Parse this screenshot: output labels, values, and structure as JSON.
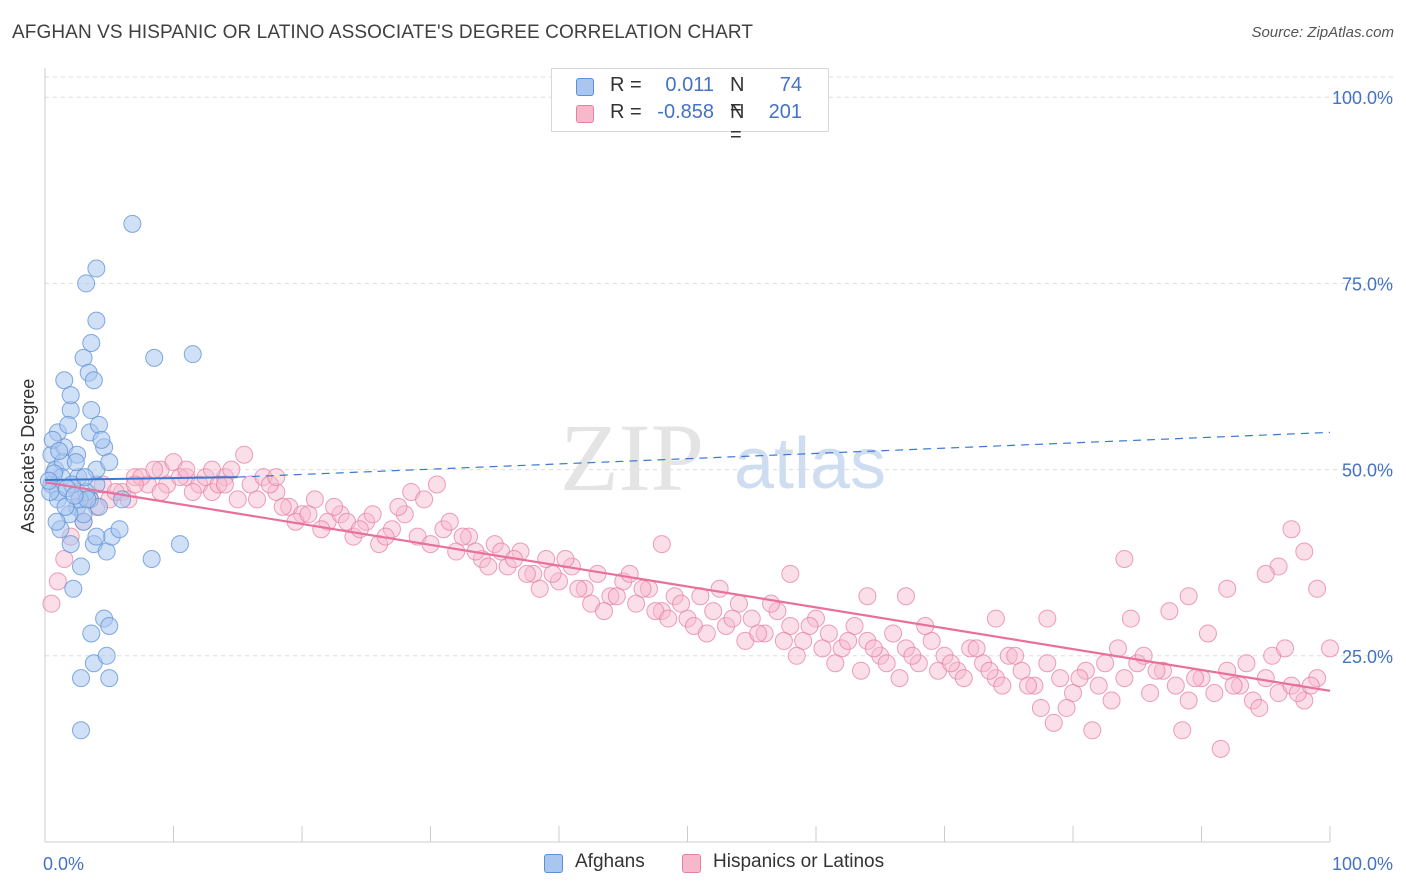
{
  "title": "AFGHAN VS HISPANIC OR LATINO ASSOCIATE'S DEGREE CORRELATION CHART",
  "source": "Source: ZipAtlas.com",
  "watermark": {
    "zip": "ZIP",
    "atlas": "atlas"
  },
  "legend": {
    "r_label": "R =",
    "n_label": "N =",
    "afghans": {
      "r": "0.011",
      "n": "74"
    },
    "hispanics": {
      "r": "-0.858",
      "n": "201"
    }
  },
  "bottom_legend": {
    "afghans": "Afghans",
    "hispanics": "Hispanics or Latinos"
  },
  "colors": {
    "afghans_fill": "#a9c6ef",
    "afghans_stroke": "#5b8fd6",
    "afghans_line": "#3a78d4",
    "hispanics_fill": "#f6b9cc",
    "hispanics_stroke": "#e77fa1",
    "hispanics_line": "#e8709a",
    "tick_label": "#4472c4",
    "grid": "#dddddd"
  },
  "chart_data": {
    "type": "scatter",
    "title": "AFGHAN VS HISPANIC OR LATINO ASSOCIATE'S DEGREE CORRELATION CHART",
    "xlabel": "",
    "ylabel": "Associate's Degree",
    "xlim": [
      0,
      100
    ],
    "ylim": [
      0,
      105
    ],
    "x_tick_labels": [
      "0.0%",
      "100.0%"
    ],
    "y_ticks": [
      25,
      50,
      75,
      100
    ],
    "y_tick_labels": [
      "25.0%",
      "50.0%",
      "75.0%",
      "100.0%"
    ],
    "grid": true,
    "legend_position": "top-center",
    "series": [
      {
        "name": "Afghans",
        "r": 0.011,
        "n": 74,
        "trend": {
          "x": [
            0,
            15
          ],
          "y": [
            48.6,
            49.0
          ],
          "dashed_extension": {
            "x": [
              15,
              100
            ],
            "y": [
              49.0,
              55.0
            ]
          }
        },
        "points": [
          [
            0.5,
            48
          ],
          [
            1,
            47
          ],
          [
            0.5,
            52
          ],
          [
            1,
            55
          ],
          [
            1.5,
            53
          ],
          [
            0.8,
            50
          ],
          [
            2,
            58
          ],
          [
            1.5,
            62
          ],
          [
            2.5,
            45
          ],
          [
            3,
            43
          ],
          [
            2,
            40
          ],
          [
            3.5,
            46
          ],
          [
            4,
            48
          ],
          [
            1.2,
            42
          ],
          [
            2.8,
            37
          ],
          [
            2.2,
            34
          ],
          [
            3,
            44
          ],
          [
            1,
            46
          ],
          [
            4,
            50
          ],
          [
            2.5,
            52
          ],
          [
            3.5,
            55
          ],
          [
            1.8,
            56
          ],
          [
            0.6,
            54
          ],
          [
            1.4,
            51
          ],
          [
            2.6,
            49
          ],
          [
            3.2,
            47
          ],
          [
            4.2,
            45
          ],
          [
            1.9,
            44
          ],
          [
            0.9,
            43
          ],
          [
            3.8,
            40
          ],
          [
            4.6,
            53
          ],
          [
            5,
            51
          ],
          [
            2,
            60
          ],
          [
            3,
            65
          ],
          [
            3.4,
            63
          ],
          [
            3.8,
            62
          ],
          [
            4,
            70
          ],
          [
            3.6,
            58
          ],
          [
            4.2,
            56
          ],
          [
            4.4,
            54
          ],
          [
            3.6,
            67
          ],
          [
            4,
            77
          ],
          [
            3.2,
            75
          ],
          [
            6.8,
            83
          ],
          [
            8.5,
            65
          ],
          [
            11.5,
            65.5
          ],
          [
            1.3,
            49
          ],
          [
            2.1,
            48
          ],
          [
            2.7,
            46
          ],
          [
            3.3,
            46
          ],
          [
            1.6,
            45
          ],
          [
            0.4,
            47
          ],
          [
            2.4,
            51
          ],
          [
            4.8,
            39
          ],
          [
            5.2,
            41
          ],
          [
            5.8,
            42
          ],
          [
            6,
            46
          ],
          [
            8.3,
            38
          ],
          [
            10.5,
            40
          ],
          [
            4,
            41
          ],
          [
            3.6,
            28
          ],
          [
            3.8,
            24
          ],
          [
            4.6,
            30
          ],
          [
            4.8,
            25
          ],
          [
            5,
            29
          ],
          [
            2.8,
            22
          ],
          [
            5,
            22
          ],
          [
            2.8,
            15
          ],
          [
            0.7,
            49.5
          ],
          [
            1.1,
            52.5
          ],
          [
            1.7,
            47.5
          ],
          [
            2.3,
            46.5
          ],
          [
            3.1,
            49
          ],
          [
            0.3,
            48.5
          ]
        ]
      },
      {
        "name": "Hispanics or Latinos",
        "r": -0.858,
        "n": 201,
        "trend": {
          "x": [
            0,
            100
          ],
          "y": [
            48.3,
            20.3
          ]
        },
        "points": [
          [
            0.5,
            32
          ],
          [
            1,
            35
          ],
          [
            1.5,
            38
          ],
          [
            2,
            41
          ],
          [
            3,
            43
          ],
          [
            4,
            45
          ],
          [
            5,
            46
          ],
          [
            6,
            47
          ],
          [
            7,
            49
          ],
          [
            8,
            48
          ],
          [
            9,
            50
          ],
          [
            10,
            51
          ],
          [
            11,
            49
          ],
          [
            12,
            48
          ],
          [
            13,
            47
          ],
          [
            14,
            49
          ],
          [
            15,
            46
          ],
          [
            16,
            48
          ],
          [
            17,
            49
          ],
          [
            18,
            47
          ],
          [
            19,
            45
          ],
          [
            20,
            44
          ],
          [
            21,
            46
          ],
          [
            22,
            43
          ],
          [
            23,
            44
          ],
          [
            24,
            41
          ],
          [
            25,
            43
          ],
          [
            26,
            40
          ],
          [
            27,
            42
          ],
          [
            28,
            44
          ],
          [
            29,
            41
          ],
          [
            30,
            40
          ],
          [
            31,
            42
          ],
          [
            32,
            39
          ],
          [
            33,
            41
          ],
          [
            34,
            38
          ],
          [
            35,
            40
          ],
          [
            36,
            37
          ],
          [
            37,
            39
          ],
          [
            38,
            36
          ],
          [
            39,
            38
          ],
          [
            40,
            35
          ],
          [
            41,
            37
          ],
          [
            42,
            34
          ],
          [
            43,
            36
          ],
          [
            44,
            33
          ],
          [
            45,
            35
          ],
          [
            46,
            32
          ],
          [
            47,
            34
          ],
          [
            48,
            31
          ],
          [
            49,
            33
          ],
          [
            50,
            30
          ],
          [
            51,
            33
          ],
          [
            52,
            31
          ],
          [
            53,
            29
          ],
          [
            54,
            32
          ],
          [
            55,
            30
          ],
          [
            56,
            28
          ],
          [
            57,
            31
          ],
          [
            58,
            29
          ],
          [
            59,
            27
          ],
          [
            60,
            30
          ],
          [
            61,
            28
          ],
          [
            62,
            26
          ],
          [
            63,
            29
          ],
          [
            64,
            27
          ],
          [
            65,
            25
          ],
          [
            66,
            28
          ],
          [
            67,
            26
          ],
          [
            68,
            24
          ],
          [
            69,
            27
          ],
          [
            70,
            25
          ],
          [
            71,
            23
          ],
          [
            72,
            26
          ],
          [
            73,
            24
          ],
          [
            74,
            22
          ],
          [
            75,
            25
          ],
          [
            76,
            23
          ],
          [
            77,
            21
          ],
          [
            78,
            24
          ],
          [
            79,
            22
          ],
          [
            80,
            20
          ],
          [
            81,
            23
          ],
          [
            82,
            21
          ],
          [
            83,
            19
          ],
          [
            84,
            22
          ],
          [
            85,
            24
          ],
          [
            86,
            20
          ],
          [
            87,
            23
          ],
          [
            88,
            21
          ],
          [
            89,
            19
          ],
          [
            90,
            22
          ],
          [
            91,
            20
          ],
          [
            92,
            23
          ],
          [
            93,
            21
          ],
          [
            94,
            19
          ],
          [
            95,
            22
          ],
          [
            96,
            20
          ],
          [
            97,
            21
          ],
          [
            98,
            19
          ],
          [
            99,
            22
          ],
          [
            100,
            26
          ],
          [
            99,
            34
          ],
          [
            98,
            39
          ],
          [
            97,
            42
          ],
          [
            96,
            37
          ],
          [
            95,
            36
          ],
          [
            2.5,
            47
          ],
          [
            3.5,
            46
          ],
          [
            4.5,
            48
          ],
          [
            5.5,
            47
          ],
          [
            6.5,
            46
          ],
          [
            7.5,
            49
          ],
          [
            8.5,
            50
          ],
          [
            9.5,
            48
          ],
          [
            10.5,
            49
          ],
          [
            11.5,
            47
          ],
          [
            12.5,
            49
          ],
          [
            13.5,
            48
          ],
          [
            14.5,
            50
          ],
          [
            15.5,
            52
          ],
          [
            16.5,
            46
          ],
          [
            17.5,
            48
          ],
          [
            18.5,
            45
          ],
          [
            19.5,
            43
          ],
          [
            20.5,
            44
          ],
          [
            21.5,
            42
          ],
          [
            22.5,
            45
          ],
          [
            23.5,
            43
          ],
          [
            24.5,
            42
          ],
          [
            25.5,
            44
          ],
          [
            26.5,
            41
          ],
          [
            27.5,
            45
          ],
          [
            28.5,
            47
          ],
          [
            29.5,
            46
          ],
          [
            30.5,
            48
          ],
          [
            31.5,
            43
          ],
          [
            32.5,
            41
          ],
          [
            33.5,
            39
          ],
          [
            34.5,
            37
          ],
          [
            35.5,
            39
          ],
          [
            36.5,
            38
          ],
          [
            37.5,
            36
          ],
          [
            38.5,
            34
          ],
          [
            39.5,
            36
          ],
          [
            40.5,
            38
          ],
          [
            41.5,
            34
          ],
          [
            42.5,
            32
          ],
          [
            43.5,
            31
          ],
          [
            44.5,
            33
          ],
          [
            45.5,
            36
          ],
          [
            46.5,
            34
          ],
          [
            47.5,
            31
          ],
          [
            48.5,
            30
          ],
          [
            49.5,
            32
          ],
          [
            50.5,
            29
          ],
          [
            51.5,
            28
          ],
          [
            52.5,
            34
          ],
          [
            53.5,
            30
          ],
          [
            54.5,
            27
          ],
          [
            55.5,
            28
          ],
          [
            56.5,
            32
          ],
          [
            57.5,
            27
          ],
          [
            58.5,
            25
          ],
          [
            59.5,
            29
          ],
          [
            60.5,
            26
          ],
          [
            61.5,
            24
          ],
          [
            62.5,
            27
          ],
          [
            63.5,
            23
          ],
          [
            64.5,
            26
          ],
          [
            65.5,
            24
          ],
          [
            66.5,
            22
          ],
          [
            67.5,
            25
          ],
          [
            68.5,
            29
          ],
          [
            69.5,
            23
          ],
          [
            70.5,
            24
          ],
          [
            71.5,
            22
          ],
          [
            72.5,
            26
          ],
          [
            73.5,
            23
          ],
          [
            74.5,
            21
          ],
          [
            75.5,
            25
          ],
          [
            76.5,
            21
          ],
          [
            77.5,
            18
          ],
          [
            78.5,
            16
          ],
          [
            79.5,
            18
          ],
          [
            80.5,
            22
          ],
          [
            81.5,
            15
          ],
          [
            82.5,
            24
          ],
          [
            83.5,
            26
          ],
          [
            84.5,
            30
          ],
          [
            85.5,
            25
          ],
          [
            86.5,
            23
          ],
          [
            87.5,
            31
          ],
          [
            88.5,
            15
          ],
          [
            89.5,
            22
          ],
          [
            90.5,
            28
          ],
          [
            91.5,
            12.5
          ],
          [
            92.5,
            21
          ],
          [
            93.5,
            24
          ],
          [
            94.5,
            18
          ],
          [
            95.5,
            25
          ],
          [
            96.5,
            26
          ],
          [
            97.5,
            20
          ],
          [
            98.5,
            21
          ],
          [
            7,
            48
          ],
          [
            9,
            47
          ],
          [
            11,
            50
          ],
          [
            13,
            50
          ],
          [
            14,
            48
          ],
          [
            18,
            49
          ],
          [
            48,
            40
          ],
          [
            58,
            36
          ],
          [
            64,
            33
          ],
          [
            67,
            33
          ],
          [
            74,
            30
          ],
          [
            78,
            30
          ],
          [
            84,
            38
          ],
          [
            89,
            33
          ],
          [
            92,
            34
          ]
        ]
      }
    ]
  }
}
